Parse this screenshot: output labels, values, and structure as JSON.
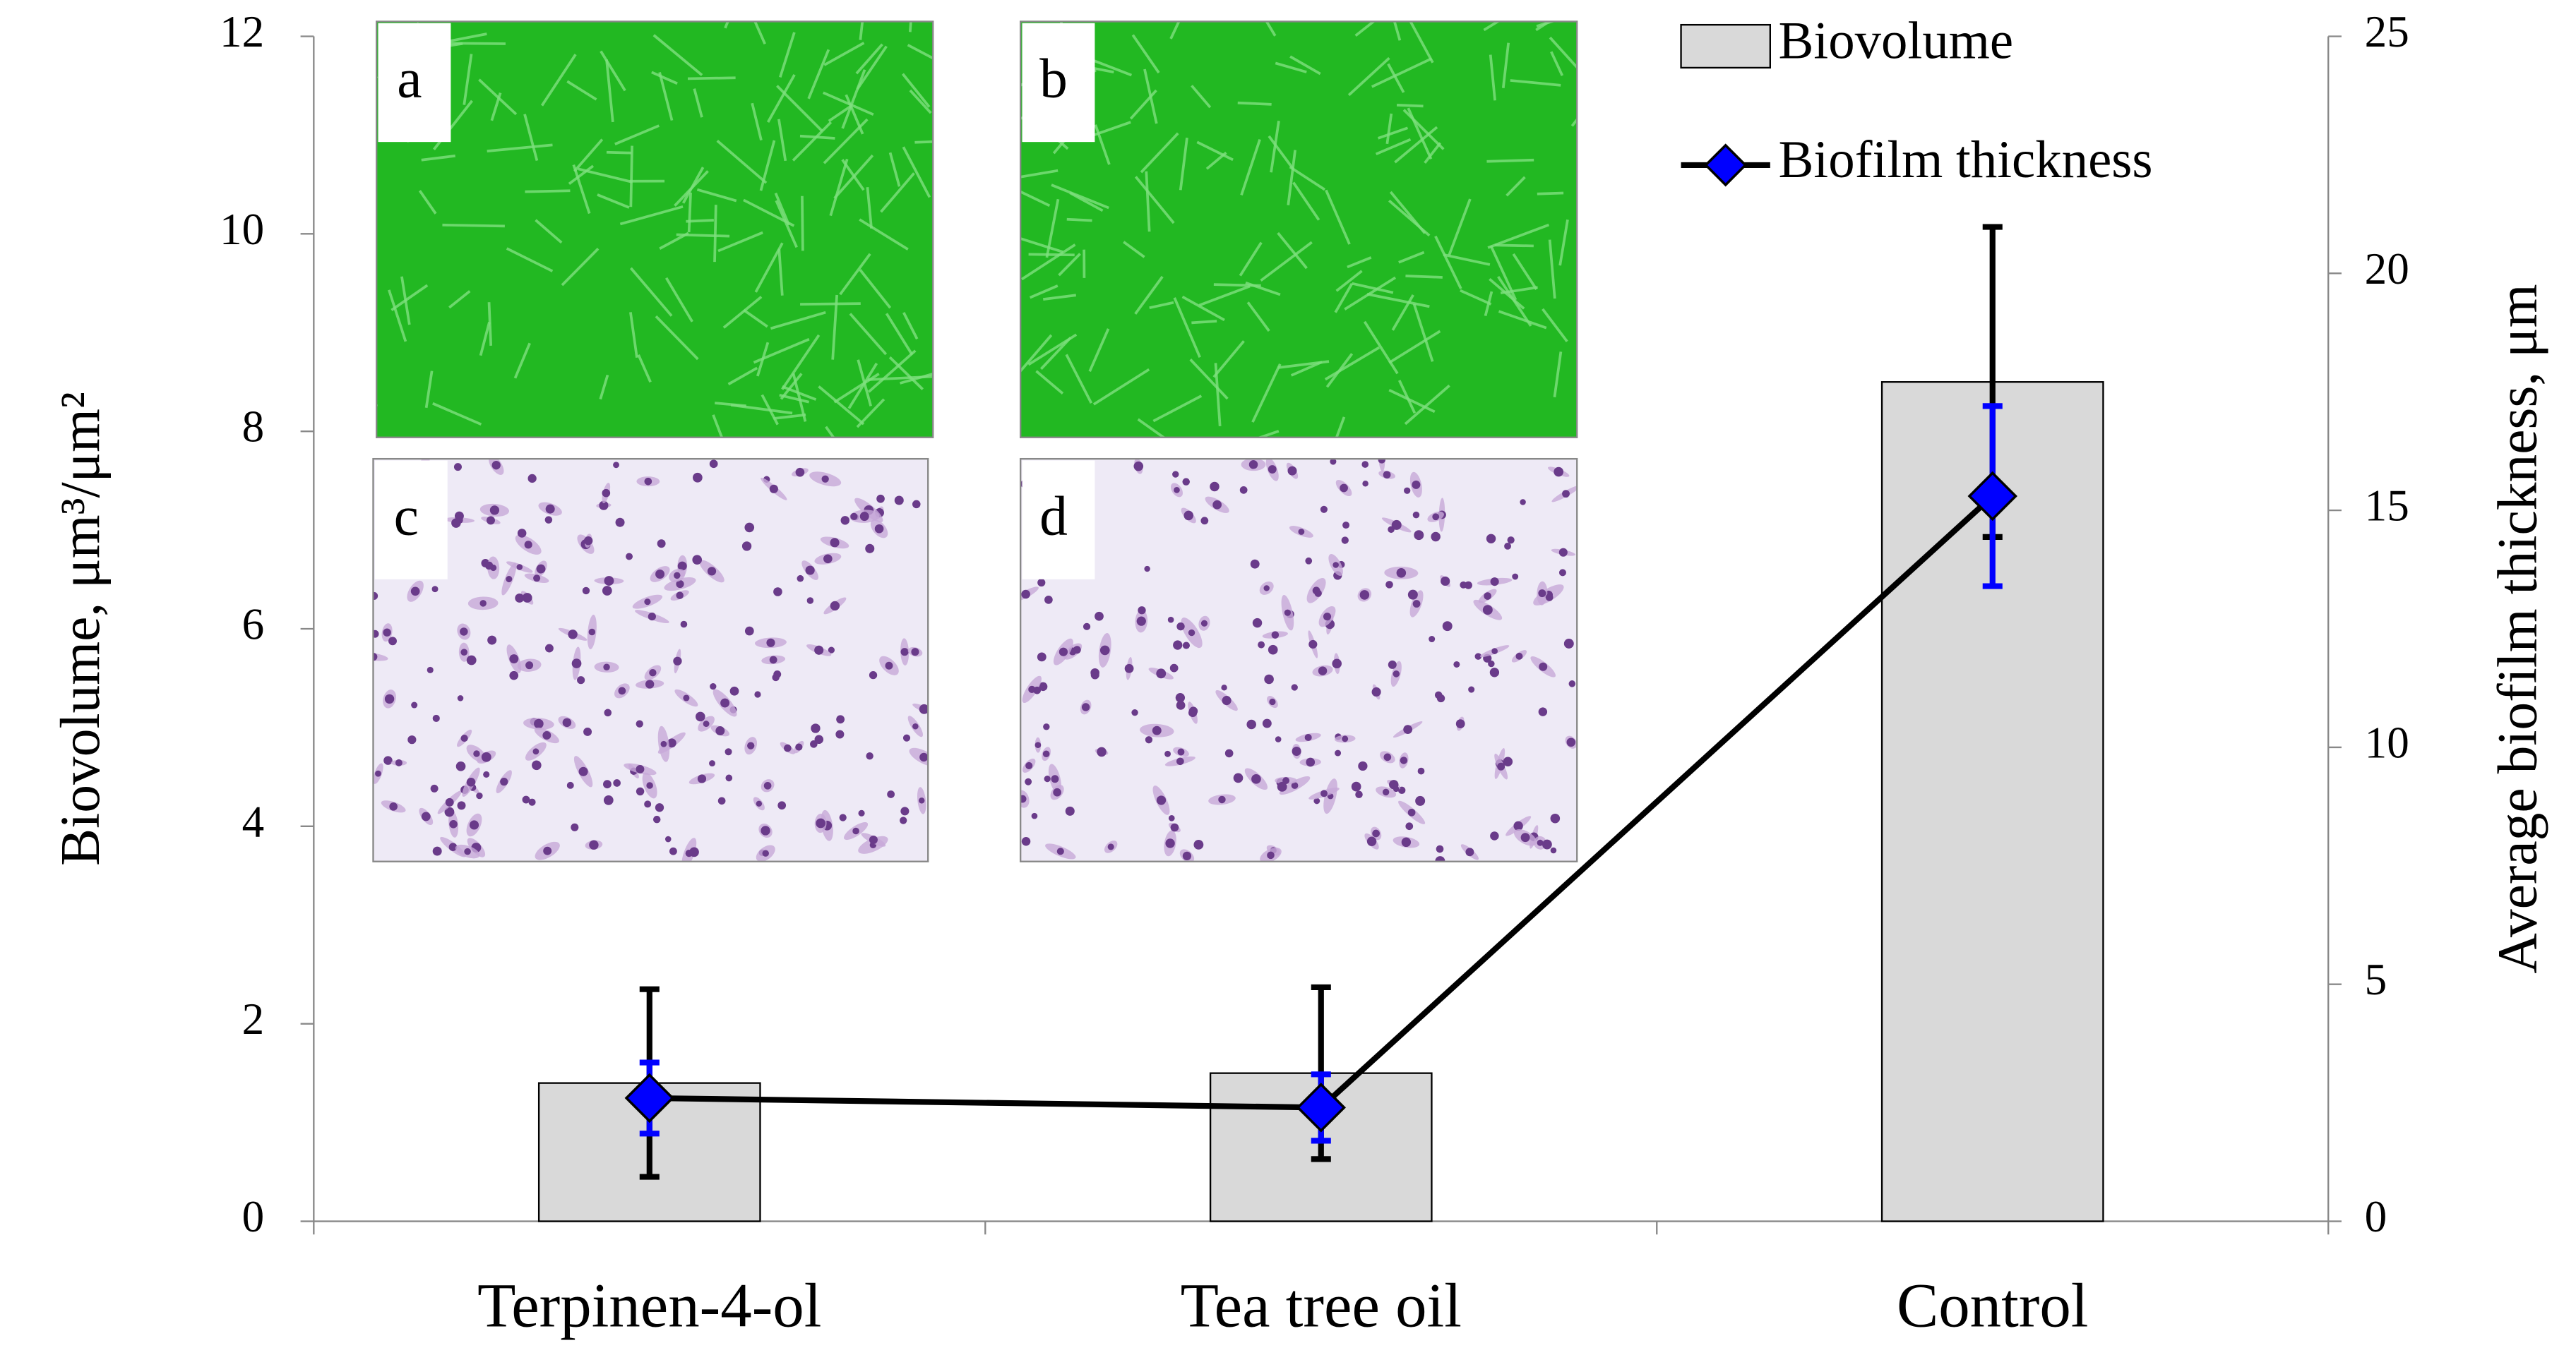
{
  "chart_data": {
    "type": "bar",
    "categories": [
      "Terpinen-4-ol",
      "Tea tree oil",
      "Control"
    ],
    "series": [
      {
        "name": "Biovolume",
        "type": "bar",
        "color": "#d9d9d9",
        "values": [
          1.4,
          1.5,
          8.5
        ],
        "errors": [
          0.95,
          0.87,
          1.57
        ],
        "error_color": "#000000"
      },
      {
        "name": "Biofilm thickness",
        "type": "line",
        "axis": "y2",
        "color": "#0000ff",
        "line_color": "#000000",
        "values": [
          2.6,
          2.4,
          15.3
        ],
        "errors": [
          0.75,
          0.7,
          1.9
        ],
        "error_color": "#0000ff"
      }
    ],
    "ylabel": "Biovolume,  μm³/μm²",
    "y2label": "Average biofilm thickness,  μm",
    "ylim": [
      0,
      12
    ],
    "yticks": [
      0,
      2,
      4,
      6,
      8,
      10,
      12
    ],
    "y2lim": [
      0,
      25
    ],
    "y2ticks": [
      0,
      5,
      10,
      15,
      20,
      25
    ],
    "legend": "upper right",
    "annotations": [
      "a",
      "b",
      "c",
      "d"
    ]
  }
}
